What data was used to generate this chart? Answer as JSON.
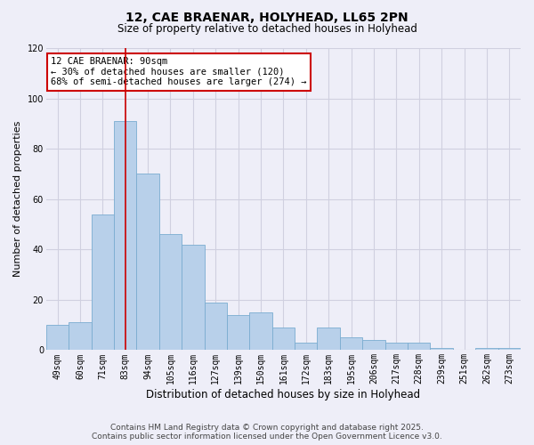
{
  "title": "12, CAE BRAENAR, HOLYHEAD, LL65 2PN",
  "subtitle": "Size of property relative to detached houses in Holyhead",
  "xlabel": "Distribution of detached houses by size in Holyhead",
  "ylabel": "Number of detached properties",
  "categories": [
    "49sqm",
    "60sqm",
    "71sqm",
    "83sqm",
    "94sqm",
    "105sqm",
    "116sqm",
    "127sqm",
    "139sqm",
    "150sqm",
    "161sqm",
    "172sqm",
    "183sqm",
    "195sqm",
    "206sqm",
    "217sqm",
    "228sqm",
    "239sqm",
    "251sqm",
    "262sqm",
    "273sqm"
  ],
  "values": [
    10,
    11,
    54,
    91,
    70,
    46,
    42,
    19,
    14,
    15,
    9,
    3,
    9,
    5,
    4,
    3,
    3,
    1,
    0,
    1,
    1
  ],
  "bar_color": "#b8d0ea",
  "bar_edge_color": "#7aacd0",
  "vline_x_index": 3,
  "vline_color": "#cc0000",
  "annotation_line1": "12 CAE BRAENAR: 90sqm",
  "annotation_line2": "← 30% of detached houses are smaller (120)",
  "annotation_line3": "68% of semi-detached houses are larger (274) →",
  "annotation_box_color": "#ffffff",
  "annotation_box_edge": "#cc0000",
  "ylim": [
    0,
    120
  ],
  "yticks": [
    0,
    20,
    40,
    60,
    80,
    100,
    120
  ],
  "footer": "Contains HM Land Registry data © Crown copyright and database right 2025.\nContains public sector information licensed under the Open Government Licence v3.0.",
  "bg_color": "#eeeef8",
  "grid_color": "#d0d0e0",
  "title_fontsize": 10,
  "subtitle_fontsize": 8.5,
  "xlabel_fontsize": 8.5,
  "ylabel_fontsize": 8,
  "tick_fontsize": 7,
  "footer_fontsize": 6.5,
  "annot_fontsize": 7.5
}
